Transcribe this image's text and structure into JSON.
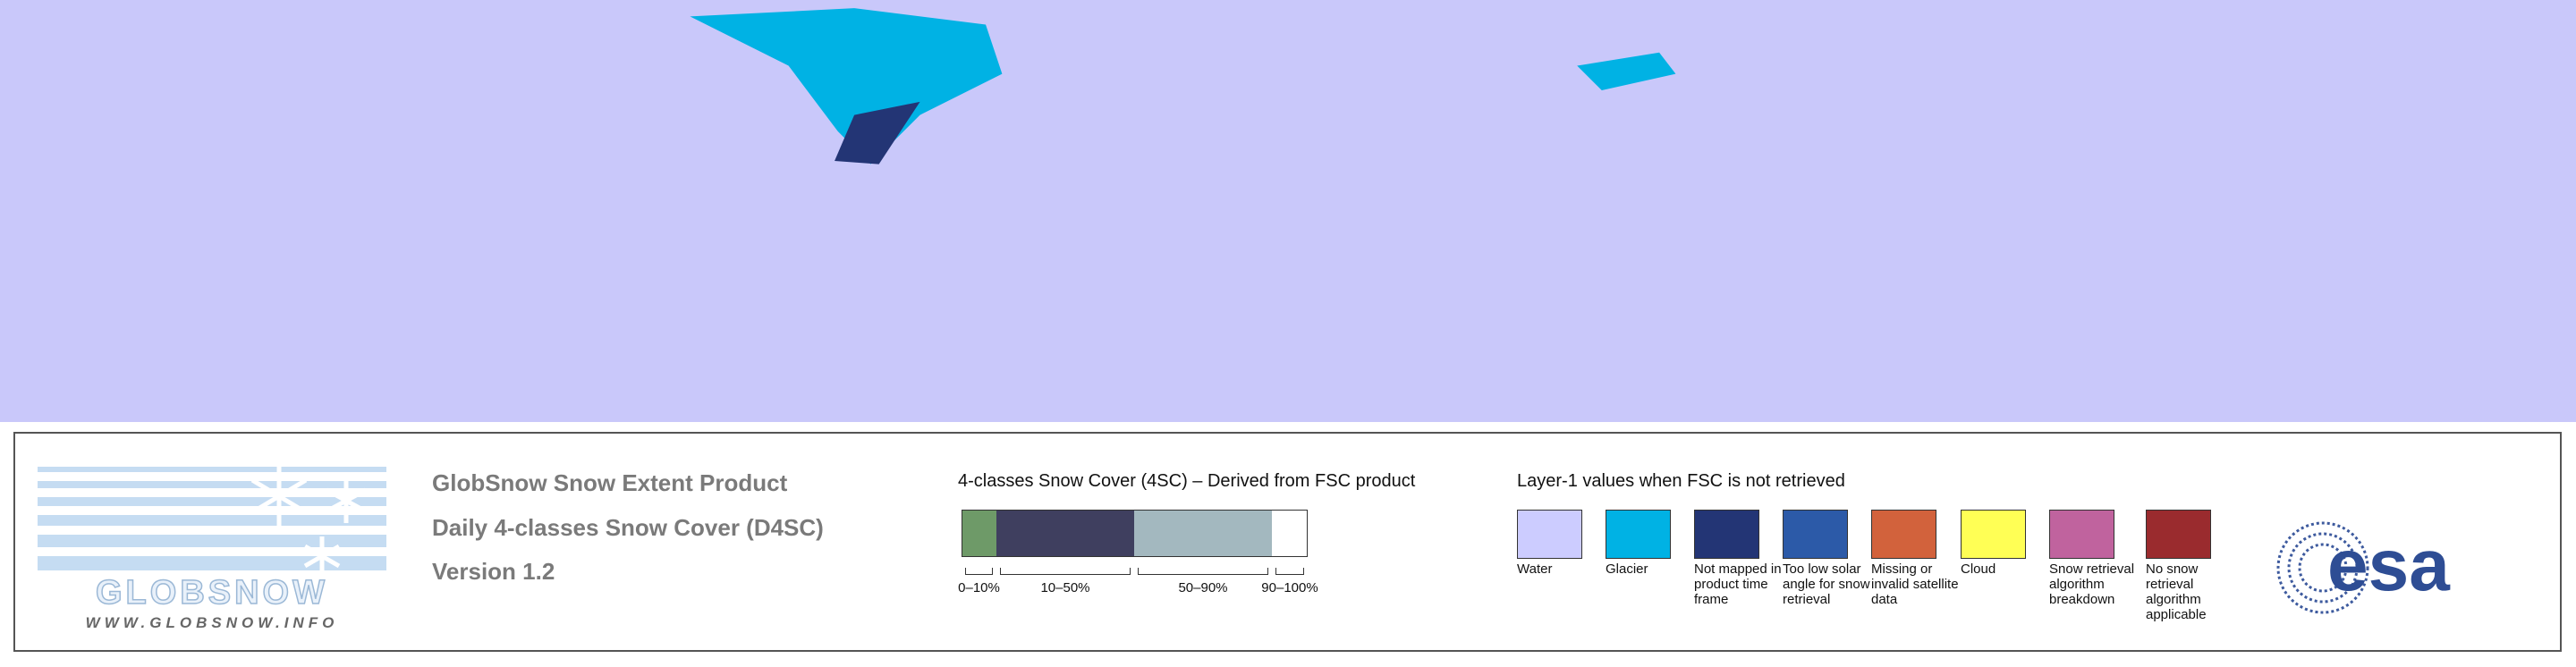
{
  "logo": {
    "name": "GLOBSNOW",
    "url": "WWW.GLOBSNOW.INFO"
  },
  "product": {
    "lines": [
      "GlobSnow Snow Extent Product",
      "Daily 4-classes Snow Cover (D4SC)",
      "Version 1.2"
    ]
  },
  "legend_4sc": {
    "title": "4-classes Snow Cover (4SC) – Derived from FSC product",
    "classes": [
      {
        "label": "0–10%",
        "color": "#6e9a68"
      },
      {
        "label": "10–50%",
        "color": "#3f3f5f"
      },
      {
        "label": "50–90%",
        "color": "#a3b8bf"
      },
      {
        "label": "90–100%",
        "color": "#ffffff"
      }
    ]
  },
  "legend_layer1": {
    "title": "Layer-1 values when FSC is not retrieved",
    "items": [
      {
        "label": "Water",
        "color": "#ccccff"
      },
      {
        "label": "Glacier",
        "color": "#00b2e4"
      },
      {
        "label": "Not mapped in product time frame",
        "color": "#233575"
      },
      {
        "label": "Too low solar angle for snow retrieval",
        "color": "#2c5aa8"
      },
      {
        "label": "Missing or invalid satellite data",
        "color": "#d2623c"
      },
      {
        "label": "Cloud",
        "color": "#ffff55"
      },
      {
        "label": "Snow retrieval algorithm breakdown",
        "color": "#c0639e"
      },
      {
        "label": "No snow retrieval algorithm applicable",
        "color": "#9a2b2e"
      }
    ]
  },
  "esa_logo": "esa"
}
